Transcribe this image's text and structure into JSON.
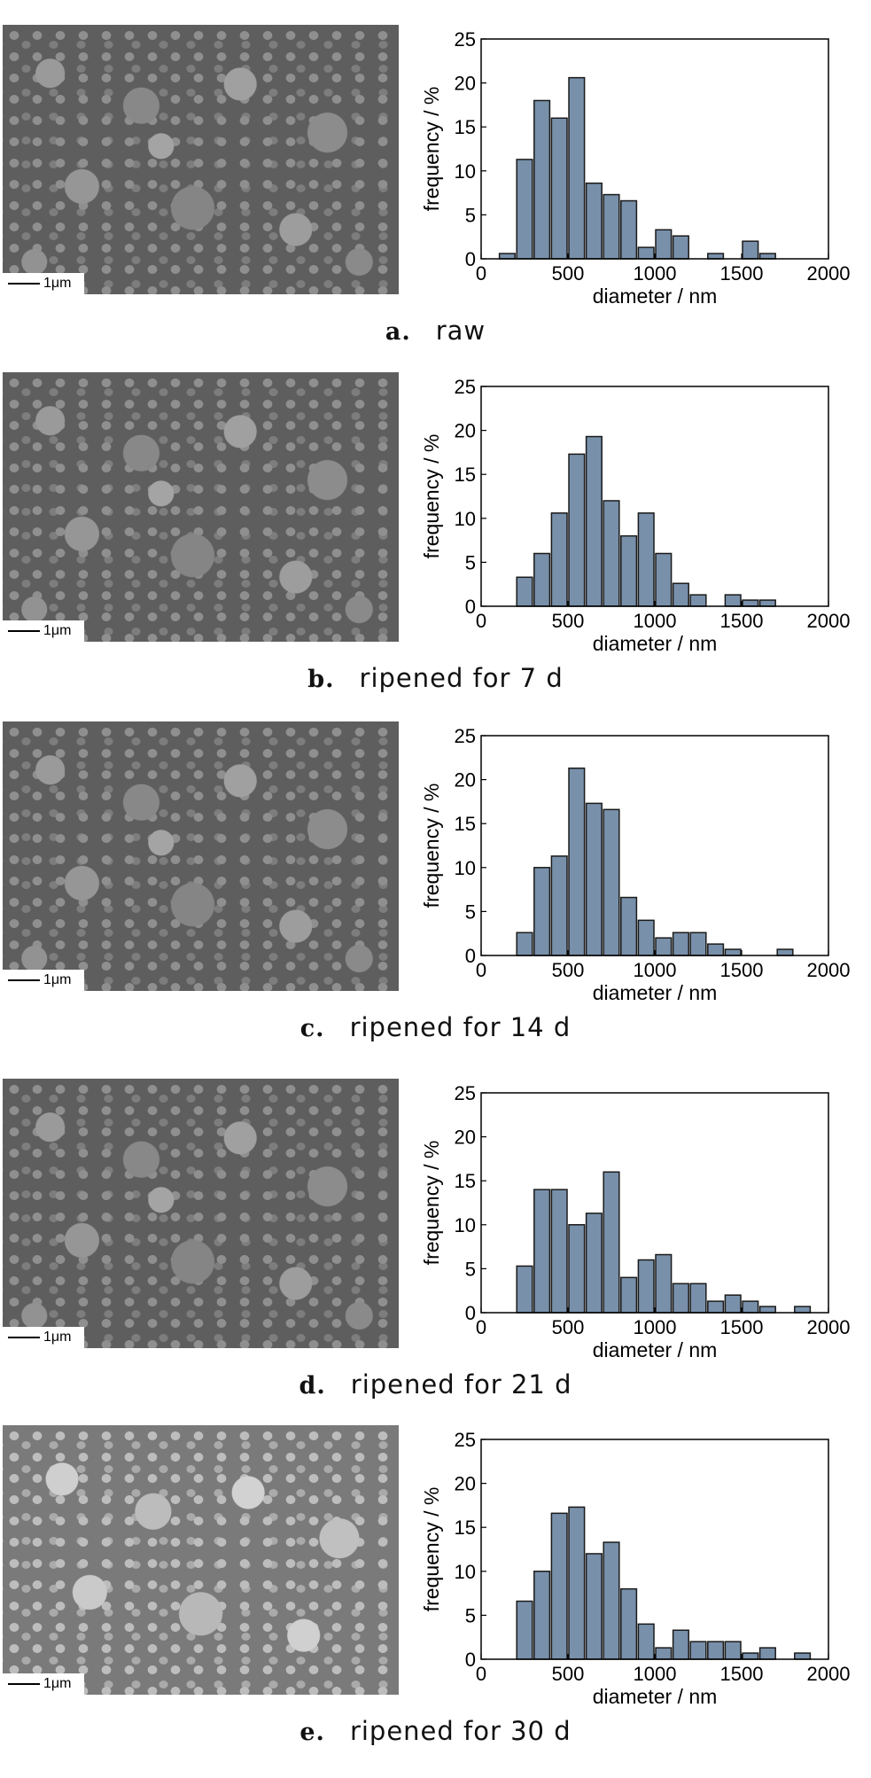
{
  "colors": {
    "bar_fill": "#7890aa",
    "bar_stroke": "#1a1a1a"
  },
  "scale_label": "1μm",
  "chart_data": [
    {
      "type": "bar",
      "panel": "a.",
      "caption": "raw",
      "xlabel": "diameter / nm",
      "ylabel": "frequency / %",
      "xlim": [
        0,
        2000
      ],
      "ylim": [
        0,
        25
      ],
      "xticks": [
        "0",
        "500",
        "1000",
        "1500",
        "2000"
      ],
      "yticks": [
        "0",
        "5",
        "10",
        "15",
        "20",
        "25"
      ],
      "bin_width": 100,
      "bin_centers": [
        150,
        250,
        350,
        450,
        550,
        650,
        750,
        850,
        950,
        1050,
        1150,
        1250,
        1350,
        1450,
        1550,
        1650
      ],
      "values": [
        0.6,
        11.3,
        18.0,
        16.0,
        20.6,
        8.6,
        7.3,
        6.6,
        1.3,
        3.3,
        2.6,
        0,
        0.6,
        0,
        2.0,
        0.6
      ]
    },
    {
      "type": "bar",
      "panel": "b.",
      "caption": "ripened for 7 d",
      "xlabel": "diameter / nm",
      "ylabel": "frequency / %",
      "xlim": [
        0,
        2000
      ],
      "ylim": [
        0,
        25
      ],
      "xticks": [
        "0",
        "500",
        "1000",
        "1500",
        "2000"
      ],
      "yticks": [
        "0",
        "5",
        "10",
        "15",
        "20",
        "25"
      ],
      "bin_width": 100,
      "bin_centers": [
        250,
        350,
        450,
        550,
        650,
        750,
        850,
        950,
        1050,
        1150,
        1250,
        1350,
        1450,
        1550,
        1650
      ],
      "values": [
        3.3,
        6.0,
        10.6,
        17.3,
        19.3,
        12.0,
        8.0,
        10.6,
        6.0,
        2.6,
        1.3,
        0,
        1.3,
        0.7,
        0.7
      ]
    },
    {
      "type": "bar",
      "panel": "c.",
      "caption": "ripened for 14 d",
      "xlabel": "diameter / nm",
      "ylabel": "frequency / %",
      "xlim": [
        0,
        2000
      ],
      "ylim": [
        0,
        25
      ],
      "xticks": [
        "0",
        "500",
        "1000",
        "1500",
        "2000"
      ],
      "yticks": [
        "0",
        "5",
        "10",
        "15",
        "20",
        "25"
      ],
      "bin_width": 100,
      "bin_centers": [
        250,
        350,
        450,
        550,
        650,
        750,
        850,
        950,
        1050,
        1150,
        1250,
        1350,
        1450,
        1550,
        1650,
        1750
      ],
      "values": [
        2.6,
        10.0,
        11.3,
        21.3,
        17.3,
        16.6,
        6.6,
        4.0,
        2.0,
        2.6,
        2.6,
        1.3,
        0.7,
        0,
        0,
        0.7
      ]
    },
    {
      "type": "bar",
      "panel": "d.",
      "caption": "ripened for 21 d",
      "xlabel": "diameter / nm",
      "ylabel": "frequency / %",
      "xlim": [
        0,
        2000
      ],
      "ylim": [
        0,
        25
      ],
      "xticks": [
        "0",
        "500",
        "1000",
        "1500",
        "2000"
      ],
      "yticks": [
        "0",
        "5",
        "10",
        "15",
        "20",
        "25"
      ],
      "bin_width": 100,
      "bin_centers": [
        250,
        350,
        450,
        550,
        650,
        750,
        850,
        950,
        1050,
        1150,
        1250,
        1350,
        1450,
        1550,
        1650,
        1750,
        1850
      ],
      "values": [
        5.3,
        14.0,
        14.0,
        10.0,
        11.3,
        16.0,
        4.0,
        6.0,
        6.6,
        3.3,
        3.3,
        1.3,
        2.0,
        1.3,
        0.7,
        0,
        0.7
      ]
    },
    {
      "type": "bar",
      "panel": "e.",
      "caption": "ripened for 30 d",
      "xlabel": "diameter / nm",
      "ylabel": "frequency / %",
      "xlim": [
        0,
        2000
      ],
      "ylim": [
        0,
        25
      ],
      "xticks": [
        "0",
        "500",
        "1000",
        "1500",
        "2000"
      ],
      "yticks": [
        "0",
        "5",
        "10",
        "15",
        "20",
        "25"
      ],
      "bin_width": 100,
      "bin_centers": [
        250,
        350,
        450,
        550,
        650,
        750,
        850,
        950,
        1050,
        1150,
        1250,
        1350,
        1450,
        1550,
        1650,
        1750,
        1850
      ],
      "values": [
        6.6,
        10.0,
        16.6,
        17.3,
        12.0,
        13.3,
        8.0,
        4.0,
        1.3,
        3.3,
        2.0,
        2.0,
        2.0,
        0.7,
        1.3,
        0,
        0.7
      ]
    }
  ]
}
